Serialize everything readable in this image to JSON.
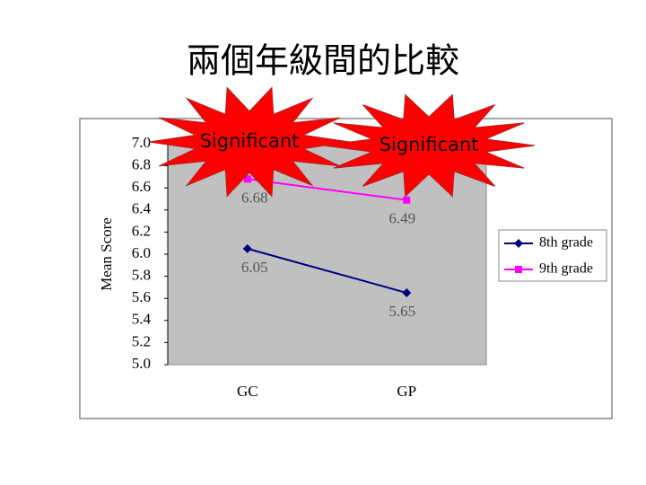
{
  "chart_data": {
    "type": "line",
    "title": "兩個年級間的比較",
    "y_label": "Mean Score",
    "categories": [
      "GC",
      "GP"
    ],
    "series": [
      {
        "name": "8th grade",
        "color": "#000080",
        "marker": "diamond",
        "values": [
          6.05,
          5.65
        ]
      },
      {
        "name": "9th grade",
        "color": "#ff00ff",
        "marker": "square",
        "values": [
          6.68,
          6.49
        ]
      }
    ],
    "ylim": [
      5.0,
      7.0
    ],
    "yticks": [
      {
        "value": 5.0,
        "label": "5.0"
      },
      5.2,
      5.4,
      5.6,
      5.8,
      {
        "value": 6.0,
        "label": "6.0"
      },
      6.2,
      6.4,
      6.6,
      6.8,
      {
        "value": 7.0,
        "label": "7.0"
      }
    ],
    "grid": false,
    "legend": "right",
    "annotations": [
      "Significant",
      "Significant"
    ]
  }
}
